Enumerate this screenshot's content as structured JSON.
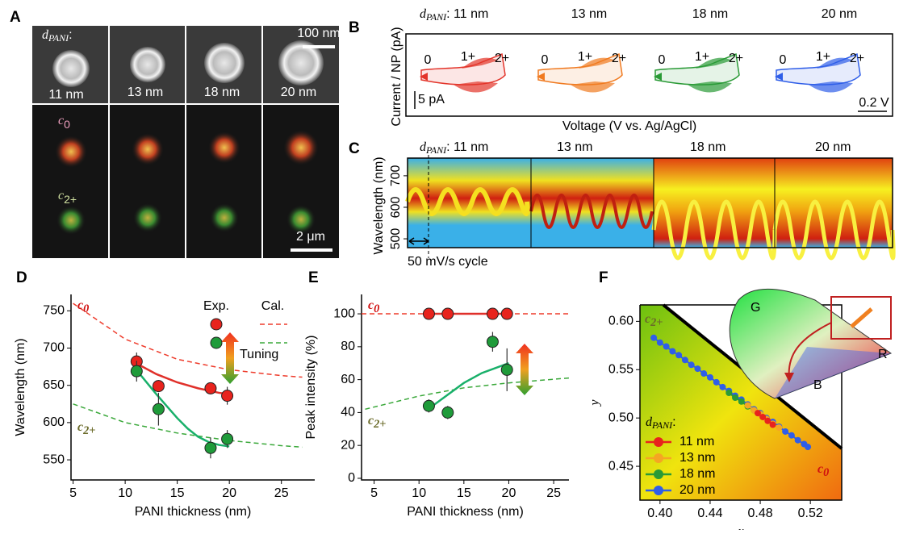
{
  "panel_labels": [
    "A",
    "B",
    "C",
    "D",
    "E",
    "F"
  ],
  "panel_a": {
    "symbol": "d",
    "subscript": "PANI",
    "colon": ":",
    "thickness_labels": [
      "11 nm",
      "13 nm",
      "18 nm",
      "20 nm"
    ],
    "scale_top": "100 nm",
    "scale_bottom": "2 μm",
    "state_symbol": "c",
    "state_low": "0",
    "state_high": "2+"
  },
  "panel_b": {
    "symbol": "d",
    "subscript": "PANI",
    "first_label": ": 11 nm",
    "thickness_labels": [
      "13 nm",
      "18 nm",
      "20 nm"
    ],
    "y_label": "Current / NP (pA)",
    "x_label": "Voltage (V vs. Ag/AgCl)",
    "scale_y": "5 pA",
    "scale_x": "0.2 V",
    "peak_labels": [
      "0",
      "1+",
      "2+"
    ]
  },
  "panel_c": {
    "symbol": "d",
    "subscript": "PANI",
    "first_label": ": 11 nm",
    "thickness_labels": [
      "13 nm",
      "18 nm",
      "20 nm"
    ],
    "y_label": "Wavelength (nm)",
    "ylim": [
      472,
      756
    ],
    "yticks": [
      500,
      600,
      700
    ],
    "cycle_label": "50 mV/s cycle"
  },
  "chart_data": [
    {
      "type": "scatter",
      "x_label": "PANI thickness (nm)",
      "y_label": "Wavelength (nm)",
      "xlim": [
        4.8,
        28.2
      ],
      "ylim": [
        523,
        772
      ],
      "xticks": [
        5,
        10,
        15,
        20,
        25
      ],
      "yticks": [
        550,
        600,
        650,
        700,
        750
      ],
      "series": [
        {
          "color": "#e8231d",
          "x": [
            11.1,
            13.2,
            18.2,
            19.8
          ],
          "values": [
            682,
            649,
            646,
            636
          ],
          "errors": [
            12,
            8,
            8,
            12
          ]
        },
        {
          "color": "#1f9b3a",
          "x": [
            11.1,
            13.2,
            18.2,
            19.8
          ],
          "values": [
            669,
            618,
            566,
            578
          ],
          "errors": [
            14,
            22,
            14,
            12
          ]
        }
      ],
      "fits": [
        {
          "color": "#e0302a",
          "x": [
            11,
            13,
            15,
            17,
            19,
            20
          ],
          "values": [
            680,
            665,
            654,
            646,
            640,
            638
          ]
        },
        {
          "color": "#19b06a",
          "x": [
            11,
            12,
            13,
            14,
            15,
            16,
            17,
            18,
            19,
            20
          ],
          "values": [
            672,
            655,
            638,
            622,
            606,
            592,
            581,
            574,
            570,
            568
          ]
        }
      ],
      "calculated": [
        {
          "color": "#ee3b2b",
          "x": [
            5,
            10,
            15,
            20,
            25,
            27
          ],
          "values": [
            760,
            712,
            685,
            671,
            663,
            661
          ]
        },
        {
          "color": "#3aa83a",
          "x": [
            5,
            10,
            15,
            20,
            25,
            27
          ],
          "values": [
            625,
            600,
            586,
            576,
            569,
            567
          ]
        }
      ],
      "legend": [
        "Exp.",
        "Cal."
      ],
      "annotations": {
        "symbol": "c",
        "sub_top": "0",
        "sub_bottom": "2+",
        "arrow": "Tuning"
      }
    },
    {
      "type": "scatter",
      "x_label": "PANI thickness (nm)",
      "y_label": "Peak intensity (%)",
      "xlim": [
        3.6,
        26.7
      ],
      "ylim": [
        -1,
        111.8
      ],
      "xticks": [
        5,
        10,
        15,
        20,
        25
      ],
      "yticks": [
        0,
        20,
        40,
        60,
        80,
        100
      ],
      "series": [
        {
          "color": "#e8231d",
          "x": [
            11.1,
            13.2,
            18.2,
            19.8
          ],
          "values": [
            100,
            100,
            100,
            100
          ],
          "errors": [
            0,
            0,
            0,
            0
          ]
        },
        {
          "color": "#1f9b3a",
          "x": [
            11.1,
            13.2,
            18.2,
            19.8
          ],
          "values": [
            44,
            40,
            83,
            66
          ],
          "errors": [
            4,
            4,
            6,
            13
          ]
        }
      ],
      "fits": [
        {
          "color": "#e0302a",
          "x": [
            11.1,
            19.8
          ],
          "values": [
            100,
            100
          ]
        },
        {
          "color": "#19b06a",
          "x": [
            11,
            13,
            15,
            17,
            20
          ],
          "values": [
            42,
            50,
            58,
            64,
            70
          ]
        }
      ],
      "calculated": [
        {
          "color": "#ee3b2b",
          "x": [
            3.6,
            26.7
          ],
          "values": [
            100,
            100
          ]
        },
        {
          "color": "#3aa83a",
          "x": [
            4,
            10,
            15,
            20,
            26.7
          ],
          "values": [
            42,
            50,
            55,
            58,
            61
          ]
        }
      ],
      "annotations": {
        "symbol": "c",
        "sub_top": "0",
        "sub_bottom": "2+"
      }
    },
    {
      "type": "scatter",
      "x_label": "x",
      "y_label": "y",
      "xlim": [
        0.384,
        0.545
      ],
      "ylim": [
        0.415,
        0.617
      ],
      "xticks": [
        {
          "value": 0.4,
          "label": "0.40"
        },
        {
          "value": 0.44,
          "label": "0.44"
        },
        {
          "value": 0.48,
          "label": "0.48"
        },
        {
          "value": 0.52,
          "label": "0.52"
        }
      ],
      "yticks": [
        {
          "value": 0.45,
          "label": "0.45"
        },
        {
          "value": 0.5,
          "label": "0.50"
        },
        {
          "value": 0.55,
          "label": "0.55"
        },
        {
          "value": 0.6,
          "label": "0.60"
        }
      ],
      "series": [
        {
          "name": "11 nm",
          "color": "#e8231d",
          "x": [
            0.478,
            0.482,
            0.486,
            0.49
          ],
          "values": [
            0.505,
            0.501,
            0.497,
            0.493
          ]
        },
        {
          "name": "13 nm",
          "color": "#f5a623",
          "x": [
            0.47,
            0.475,
            0.48,
            0.485,
            0.49,
            0.495
          ],
          "values": [
            0.513,
            0.508,
            0.504,
            0.499,
            0.494,
            0.49
          ]
        },
        {
          "name": "18 nm",
          "color": "#2a9a36",
          "x": [
            0.455,
            0.46,
            0.465,
            0.47,
            0.475
          ],
          "values": [
            0.526,
            0.521,
            0.517,
            0.512,
            0.508
          ]
        },
        {
          "name": "20 nm",
          "color": "#2f5ee8",
          "x": [
            0.395,
            0.4,
            0.405,
            0.41,
            0.415,
            0.42,
            0.425,
            0.43,
            0.435,
            0.44,
            0.445,
            0.45,
            0.455,
            0.46,
            0.465,
            0.47,
            0.475,
            0.48,
            0.485,
            0.49,
            0.495,
            0.5,
            0.505,
            0.51,
            0.515,
            0.518
          ],
          "values": [
            0.583,
            0.578,
            0.574,
            0.569,
            0.565,
            0.56,
            0.555,
            0.551,
            0.546,
            0.542,
            0.537,
            0.532,
            0.528,
            0.523,
            0.519,
            0.514,
            0.509,
            0.505,
            0.5,
            0.496,
            0.491,
            0.486,
            0.482,
            0.477,
            0.473,
            0.47
          ]
        }
      ],
      "legend_title": {
        "symbol": "d",
        "subscript": "PANI",
        "colon": ":"
      },
      "annotations": {
        "symbol": "c",
        "sub_top": "2+",
        "sub_bottom": "0"
      },
      "inset_labels": [
        "G",
        "R",
        "B"
      ]
    }
  ]
}
